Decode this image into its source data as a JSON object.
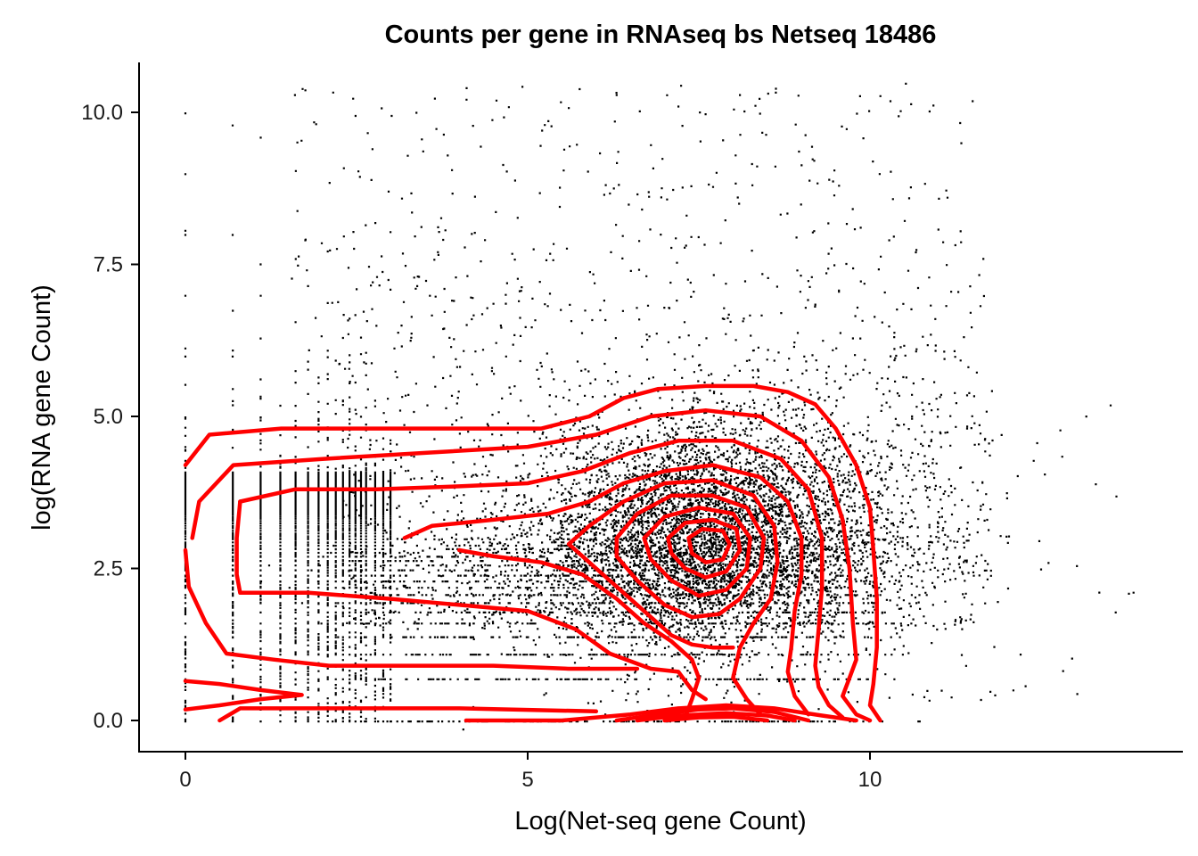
{
  "chart_data": {
    "type": "scatter",
    "title": "Counts per gene in RNAseq bs Netseq 18486",
    "xlabel": "Log(Net-seq gene Count)",
    "ylabel": "log(RNA gene Count)",
    "xlim": [
      -0.7,
      14.7
    ],
    "ylim": [
      -0.5,
      10.8
    ],
    "x_ticks": [
      0,
      5,
      10
    ],
    "x_tick_labels": [
      "0",
      "5",
      "10"
    ],
    "y_ticks": [
      0,
      2.5,
      5,
      7.5,
      10
    ],
    "y_tick_labels": [
      "0.0",
      "2.5",
      "5.0",
      "7.5",
      "10.0"
    ],
    "grid": false,
    "legend": "none",
    "series": [
      {
        "kind": "points",
        "color": "#000000",
        "description_points": [
          [
            0,
            0
          ],
          [
            0,
            0.69
          ],
          [
            0,
            1.1
          ],
          [
            0,
            1.39
          ],
          [
            0,
            1.61
          ],
          [
            0,
            2.5
          ],
          [
            0,
            3.0
          ],
          [
            0,
            4.0
          ],
          [
            0,
            5.0
          ],
          [
            0,
            6.0
          ],
          [
            0,
            7.0
          ],
          [
            0,
            8.0
          ],
          [
            0,
            9.0
          ],
          [
            0,
            10.0
          ],
          [
            0.69,
            0
          ],
          [
            0.69,
            1.0
          ],
          [
            0.69,
            2.5
          ],
          [
            0.69,
            4.5
          ],
          [
            0.69,
            6.0
          ],
          [
            0.69,
            8.0
          ],
          [
            0.69,
            9.8
          ],
          [
            1.1,
            0
          ],
          [
            1.1,
            2.0
          ],
          [
            1.1,
            5.0
          ],
          [
            1.1,
            7.0
          ],
          [
            1.1,
            9.6
          ],
          [
            7.8,
            2.9
          ],
          [
            8.0,
            3.0
          ],
          [
            7.5,
            3.1
          ],
          [
            8.2,
            2.8
          ],
          [
            13.3,
            3.9
          ],
          [
            13.6,
            3.7
          ],
          [
            12.5,
            2.5
          ],
          [
            12.2,
            1.1
          ],
          [
            11.5,
            10.2
          ],
          [
            1.6,
            10.3
          ],
          [
            6.3,
            10.3
          ],
          [
            8.1,
            10.3
          ],
          [
            10.3,
            10.2
          ]
        ]
      },
      {
        "kind": "density-contours",
        "color": "#ff0000",
        "levels": 9,
        "peak": [
          7.9,
          2.9
        ]
      }
    ]
  }
}
